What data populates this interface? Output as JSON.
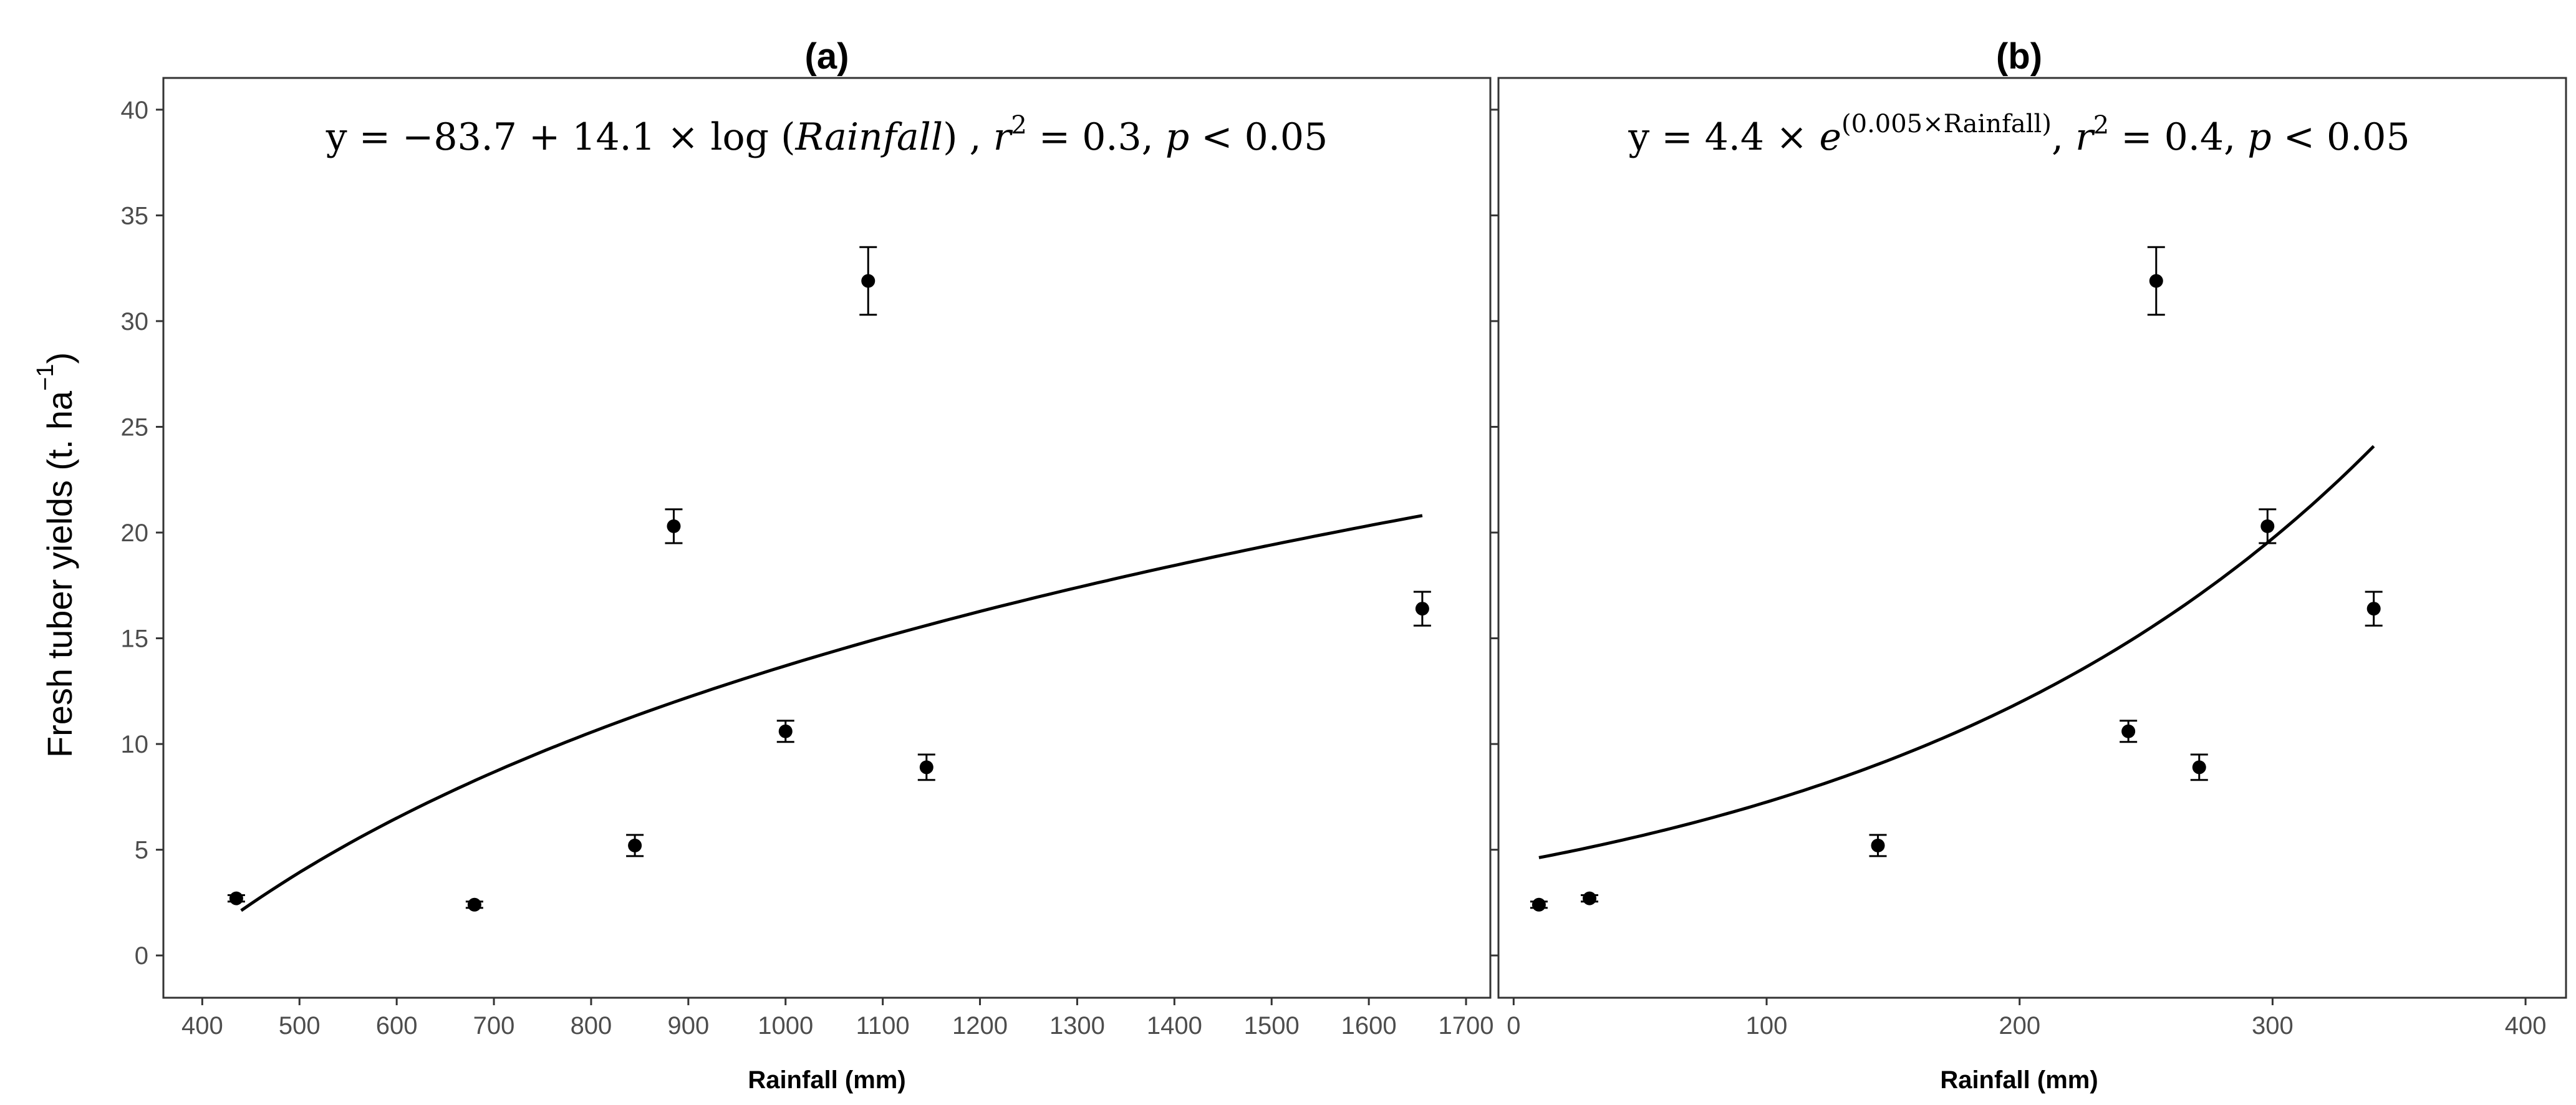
{
  "figure": {
    "y_axis_label": "Fresh tuber yields (t. ha",
    "y_axis_label_exponent": "−1",
    "y_axis_label_close": ")"
  },
  "chart_data": [
    {
      "type": "scatter",
      "panel_label": "(a)",
      "equation": {
        "lhs": "y = −83.7 + 14.1 × log (",
        "var": "Rainfall",
        "mid": ") , ",
        "r": "r",
        "r_exp": "2",
        "rest": " = 0.3, ",
        "p": "p",
        "p_rest": " < 0.05"
      },
      "xlabel": "Rainfall (mm)",
      "xlim": [
        360,
        1725
      ],
      "ylim": [
        -2,
        41.5
      ],
      "x_ticks": [
        400,
        500,
        600,
        700,
        800,
        900,
        1000,
        1100,
        1200,
        1300,
        1400,
        1500,
        1600,
        1700
      ],
      "y_ticks": [
        0,
        5,
        10,
        15,
        20,
        25,
        30,
        35,
        40
      ],
      "points": [
        {
          "x": 435,
          "y": 2.7,
          "err": 0.15
        },
        {
          "x": 680,
          "y": 2.4,
          "err": 0.15
        },
        {
          "x": 845,
          "y": 5.2,
          "err": 0.5
        },
        {
          "x": 885,
          "y": 20.3,
          "err": 0.8
        },
        {
          "x": 1000,
          "y": 10.6,
          "err": 0.5
        },
        {
          "x": 1085,
          "y": 31.9,
          "err": 1.6
        },
        {
          "x": 1145,
          "y": 8.9,
          "err": 0.6
        },
        {
          "x": 1655,
          "y": 16.4,
          "err": 0.8
        }
      ],
      "fit": {
        "model": "log",
        "a": -83.7,
        "b": 14.1,
        "x_range": [
          440,
          1655
        ]
      }
    },
    {
      "type": "scatter",
      "panel_label": "(b)",
      "equation": {
        "lhs": "y = 4.4 × ",
        "e": "e",
        "e_exp": "(0.005×Rainfall)",
        "sep": ", ",
        "r": "r",
        "r_exp": "2",
        "rest": " = 0.4, ",
        "p": "p",
        "p_rest": " < 0.05"
      },
      "xlabel": "Rainfall (mm)",
      "xlim": [
        -6,
        416
      ],
      "ylim": [
        -2,
        41.5
      ],
      "x_ticks": [
        0,
        100,
        200,
        300,
        400
      ],
      "y_ticks": [
        0,
        5,
        10,
        15,
        20,
        25,
        30,
        35,
        40
      ],
      "points": [
        {
          "x": 10,
          "y": 2.4,
          "err": 0.15
        },
        {
          "x": 30,
          "y": 2.7,
          "err": 0.15
        },
        {
          "x": 144,
          "y": 5.2,
          "err": 0.5
        },
        {
          "x": 243,
          "y": 10.6,
          "err": 0.5
        },
        {
          "x": 254,
          "y": 31.9,
          "err": 1.6
        },
        {
          "x": 271,
          "y": 8.9,
          "err": 0.6
        },
        {
          "x": 298,
          "y": 20.3,
          "err": 0.8
        },
        {
          "x": 340,
          "y": 16.4,
          "err": 0.8
        }
      ],
      "fit": {
        "model": "exp",
        "a": 4.4,
        "b": 0.005,
        "x_range": [
          10,
          340
        ]
      }
    }
  ]
}
